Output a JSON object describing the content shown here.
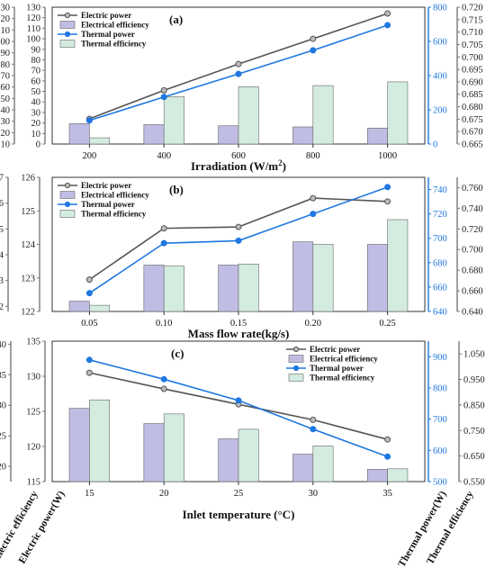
{
  "colors": {
    "electric_power": "#555555",
    "thermal_power": "#1f77e0",
    "electrical_efficiency": "#bfbde3",
    "thermal_efficiency": "#d4ece0",
    "axis_blue": "#1f77e0",
    "axis_gray": "#777777"
  },
  "side_labels": {
    "electric_efficiency": "Electric efficiency",
    "electric_power": "Electric power(W)",
    "thermal_power": "Thermal power(W)",
    "thermal_efficiency": "Thermal efficiency"
  },
  "chart_data": [
    {
      "type": "bar",
      "panel_label": "(a)",
      "xlabel": "Irradiation (W/m²)",
      "xlabel_main": "Irradiation (W/m",
      "xlabel_sup": "2",
      "xlabel_end": ")",
      "categories": [
        "200",
        "400",
        "600",
        "800",
        "1000"
      ],
      "axes": {
        "electric_power": {
          "min": 0,
          "max": 130,
          "step": 10
        },
        "electrical_efficiency": {
          "min": 0.11,
          "max": 0.23,
          "step": 0.01,
          "decimals": 3
        },
        "thermal_power": {
          "min": 0,
          "max": 800,
          "step": 200
        },
        "thermal_efficiency": {
          "min": 0.665,
          "max": 0.72,
          "step": 0.005,
          "decimals": 3
        }
      },
      "legend_position": "top-left",
      "series": [
        {
          "name": "Electric power",
          "kind": "line",
          "axis": "electric_power",
          "values": [
            24,
            51,
            76,
            100,
            124
          ]
        },
        {
          "name": "Electrical efficiency",
          "kind": "bar",
          "axis": "electrical_efficiency",
          "values": [
            0.128,
            0.127,
            0.126,
            0.125,
            0.124
          ]
        },
        {
          "name": "Thermal power",
          "kind": "line",
          "axis": "thermal_power",
          "values": [
            138,
            275,
            410,
            548,
            695
          ]
        },
        {
          "name": "Thermal efficiency",
          "kind": "bar",
          "axis": "thermal_efficiency",
          "values": [
            0.6675,
            0.684,
            0.688,
            0.6885,
            0.69
          ]
        }
      ]
    },
    {
      "type": "bar",
      "panel_label": "(b)",
      "xlabel": "Mass flow rate(kg/s)",
      "categories": [
        "0.05",
        "0.10",
        "0.15",
        "0.20",
        "0.25"
      ],
      "axes": {
        "electric_power": {
          "min": 122,
          "max": 126,
          "step": 1
        },
        "electrical_efficiency": {
          "min": 0.1218,
          "max": 0.127,
          "step": 0.001,
          "first": 0.122,
          "decimals": 3
        },
        "thermal_power": {
          "min": 640,
          "max": 750,
          "step": 20
        },
        "thermal_efficiency": {
          "min": 0.64,
          "max": 0.77,
          "step": 0.02,
          "decimals": 3
        }
      },
      "legend_position": "top-left",
      "series": [
        {
          "name": "Electric power",
          "kind": "line",
          "axis": "electric_power",
          "values": [
            122.95,
            124.48,
            124.52,
            125.38,
            125.28
          ]
        },
        {
          "name": "Electrical efficiency",
          "kind": "bar",
          "axis": "electrical_efficiency",
          "values": [
            0.1222,
            0.1236,
            0.1236,
            0.1245,
            0.1244
          ]
        },
        {
          "name": "Thermal power",
          "kind": "line",
          "axis": "thermal_power",
          "values": [
            655,
            696,
            698,
            720,
            742
          ]
        },
        {
          "name": "Thermal efficiency",
          "kind": "bar",
          "axis": "thermal_efficiency",
          "values": [
            0.646,
            0.684,
            0.686,
            0.705,
            0.729
          ]
        }
      ]
    },
    {
      "type": "bar",
      "panel_label": "(c)",
      "xlabel": "Inlet temperature (°C)",
      "categories": [
        "15",
        "20",
        "25",
        "30",
        "35"
      ],
      "axes": {
        "electric_power": {
          "min": 115,
          "max": 135,
          "step": 5
        },
        "electrical_efficiency": {
          "min": 0.1175,
          "max": 0.1405,
          "step": 0.005,
          "first": 0.12,
          "decimals": 3
        },
        "thermal_power": {
          "min": 500,
          "max": 950,
          "step": 100
        },
        "thermal_efficiency": {
          "min": 0.55,
          "max": 1.1,
          "step": 0.1,
          "decimals": 3
        }
      },
      "legend_position": "top-right",
      "series": [
        {
          "name": "Electric power",
          "kind": "line",
          "axis": "electric_power",
          "values": [
            130.5,
            128.2,
            126.0,
            123.8,
            121.0
          ]
        },
        {
          "name": "Electrical efficiency",
          "kind": "bar",
          "axis": "electrical_efficiency",
          "values": [
            0.1295,
            0.127,
            0.1245,
            0.122,
            0.1195
          ]
        },
        {
          "name": "Thermal power",
          "kind": "line",
          "axis": "thermal_power",
          "values": [
            890,
            828,
            760,
            668,
            580
          ]
        },
        {
          "name": "Thermal efficiency",
          "kind": "bar",
          "axis": "thermal_efficiency",
          "values": [
            0.87,
            0.815,
            0.755,
            0.69,
            0.6
          ]
        }
      ]
    }
  ]
}
